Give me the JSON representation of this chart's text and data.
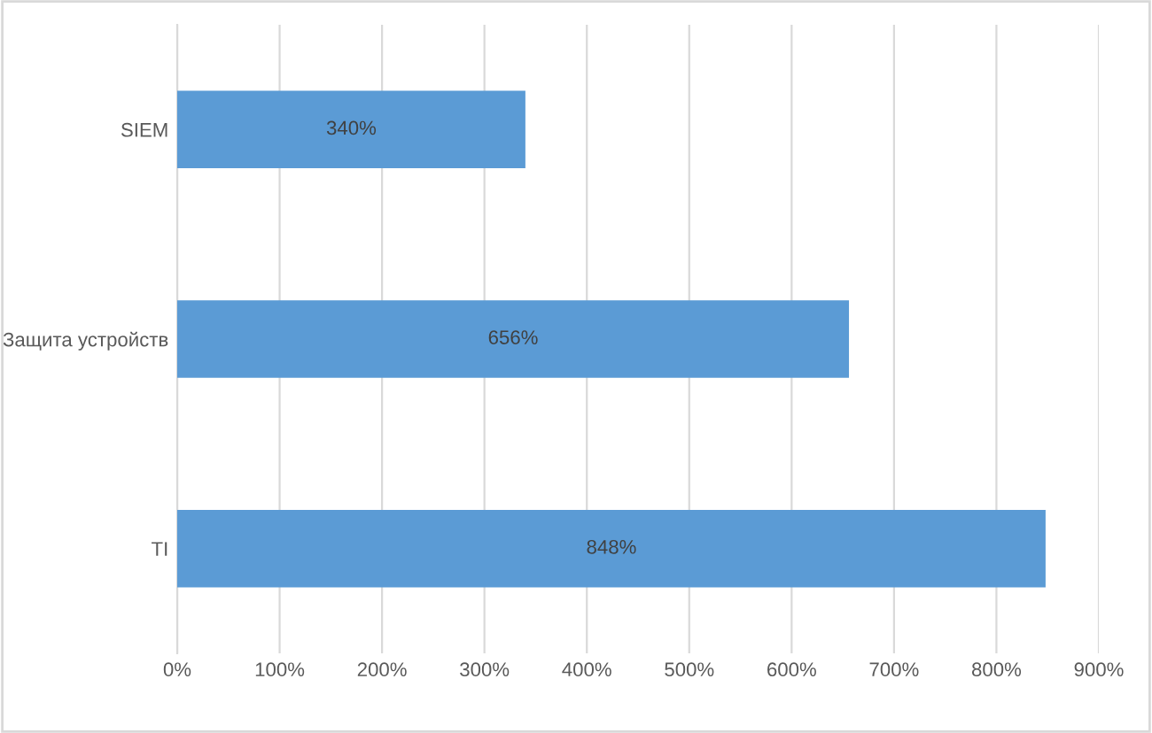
{
  "chart_data": {
    "type": "bar",
    "orientation": "horizontal",
    "categories": [
      "SIEM",
      "Защита устройств",
      "TI"
    ],
    "values": [
      340,
      656,
      848
    ],
    "value_labels": [
      "340%",
      "656%",
      "848%"
    ],
    "color": "#5b9bd5",
    "xlim": [
      0,
      900
    ],
    "xticks": [
      {
        "value": 0,
        "label": "0%"
      },
      {
        "value": 100,
        "label": "100%"
      },
      {
        "value": 200,
        "label": "200%"
      },
      {
        "value": 300,
        "label": "300%"
      },
      {
        "value": 400,
        "label": "400%"
      },
      {
        "value": 500,
        "label": "500%"
      },
      {
        "value": 600,
        "label": "600%"
      },
      {
        "value": 700,
        "label": "700%"
      },
      {
        "value": 800,
        "label": "800%"
      },
      {
        "value": 900,
        "label": "900%"
      }
    ],
    "grid": "x",
    "legend": false
  }
}
